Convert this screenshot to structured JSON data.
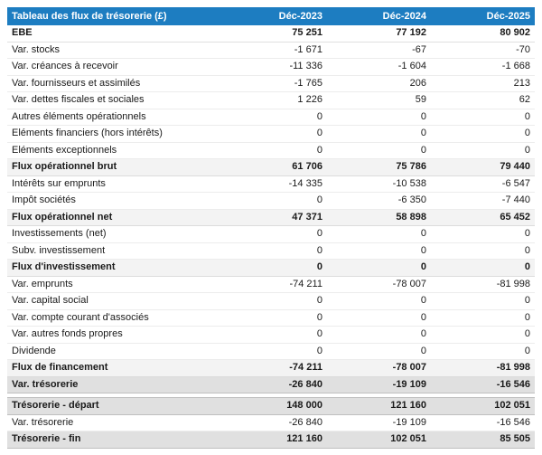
{
  "table": {
    "title": "Tableau des flux de trésorerie (£)",
    "columns": [
      "Déc-2023",
      "Déc-2024",
      "Déc-2025"
    ],
    "rows": [
      {
        "label": "EBE",
        "values": [
          "75 251",
          "77 192",
          "80 902"
        ],
        "style": "bold"
      },
      {
        "label": "Var. stocks",
        "values": [
          "-1 671",
          "-67",
          "-70"
        ],
        "style": "normal"
      },
      {
        "label": "Var. créances à recevoir",
        "values": [
          "-11 336",
          "-1 604",
          "-1 668"
        ],
        "style": "normal"
      },
      {
        "label": "Var. fournisseurs et assimilés",
        "values": [
          "-1 765",
          "206",
          "213"
        ],
        "style": "normal"
      },
      {
        "label": "Var. dettes fiscales et sociales",
        "values": [
          "1 226",
          "59",
          "62"
        ],
        "style": "normal"
      },
      {
        "label": "Autres éléments opérationnels",
        "values": [
          "0",
          "0",
          "0"
        ],
        "style": "normal"
      },
      {
        "label": "Eléments financiers (hors intérêts)",
        "values": [
          "0",
          "0",
          "0"
        ],
        "style": "normal"
      },
      {
        "label": "Eléments exceptionnels",
        "values": [
          "0",
          "0",
          "0"
        ],
        "style": "normal"
      },
      {
        "label": "Flux opérationnel brut",
        "values": [
          "61 706",
          "75 786",
          "79 440"
        ],
        "style": "subtotal"
      },
      {
        "label": "Intérêts sur emprunts",
        "values": [
          "-14 335",
          "-10 538",
          "-6 547"
        ],
        "style": "normal"
      },
      {
        "label": "Impôt sociétés",
        "values": [
          "0",
          "-6 350",
          "-7 440"
        ],
        "style": "normal"
      },
      {
        "label": "Flux opérationnel net",
        "values": [
          "47 371",
          "58 898",
          "65 452"
        ],
        "style": "subtotal"
      },
      {
        "label": "Investissements (net)",
        "values": [
          "0",
          "0",
          "0"
        ],
        "style": "normal"
      },
      {
        "label": "Subv. investissement",
        "values": [
          "0",
          "0",
          "0"
        ],
        "style": "normal"
      },
      {
        "label": "Flux d'investissement",
        "values": [
          "0",
          "0",
          "0"
        ],
        "style": "subtotal"
      },
      {
        "label": "Var. emprunts",
        "values": [
          "-74 211",
          "-78 007",
          "-81 998"
        ],
        "style": "normal"
      },
      {
        "label": "Var. capital social",
        "values": [
          "0",
          "0",
          "0"
        ],
        "style": "normal"
      },
      {
        "label": "Var. compte courant d'associés",
        "values": [
          "0",
          "0",
          "0"
        ],
        "style": "normal"
      },
      {
        "label": "Var. autres fonds propres",
        "values": [
          "0",
          "0",
          "0"
        ],
        "style": "normal"
      },
      {
        "label": "Dividende",
        "values": [
          "0",
          "0",
          "0"
        ],
        "style": "normal"
      },
      {
        "label": "Flux de financement",
        "values": [
          "-74 211",
          "-78 007",
          "-81 998"
        ],
        "style": "subtotal"
      },
      {
        "label": "Var. trésorerie",
        "values": [
          "-26 840",
          "-19 109",
          "-16 546"
        ],
        "style": "total"
      },
      {
        "label": "",
        "values": [],
        "style": "spacer"
      },
      {
        "label": "Trésorerie - départ",
        "values": [
          "148 000",
          "121 160",
          "102 051"
        ],
        "style": "total"
      },
      {
        "label": "Var. trésorerie",
        "values": [
          "-26 840",
          "-19 109",
          "-16 546"
        ],
        "style": "normal"
      },
      {
        "label": "Trésorerie - fin",
        "values": [
          "121 160",
          "102 051",
          "85 505"
        ],
        "style": "total"
      }
    ]
  },
  "colors": {
    "header_bg": "#1d7dc1",
    "header_text": "#ffffff",
    "subtotal_row_bg": "#f3f3f3",
    "total_row_bg": "#e0e0e0",
    "body_text": "#1a1a1a"
  }
}
